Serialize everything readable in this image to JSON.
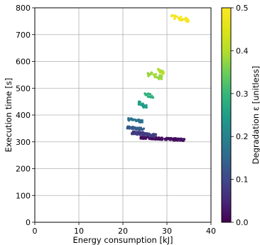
{
  "chart_data": {
    "type": "scatter",
    "xlabel": "Energy consumption [kJ]",
    "ylabel": "Execution time [s]",
    "xlim": [
      0,
      40
    ],
    "ylim": [
      0,
      800
    ],
    "xticks": [
      0,
      10,
      20,
      30,
      40
    ],
    "yticks": [
      0,
      100,
      200,
      300,
      400,
      500,
      600,
      700,
      800
    ],
    "grid": true,
    "colormap": "viridis",
    "colorbar": {
      "label": "Degradation ε [unitless]",
      "range": [
        0,
        0.5
      ],
      "ticks": [
        "0.0",
        "0.1",
        "0.2",
        "0.3",
        "0.4",
        "0.5"
      ]
    },
    "clusters": [
      {
        "degradation": 0.02,
        "x_range": [
          24.0,
          34.0
        ],
        "y_range": [
          302,
          316
        ],
        "count": 170
      },
      {
        "degradation": 0.08,
        "x_range": [
          22.0,
          27.5
        ],
        "y_range": [
          316,
          335
        ],
        "count": 80
      },
      {
        "degradation": 0.13,
        "x_range": [
          21.0,
          25.0
        ],
        "y_range": [
          340,
          355
        ],
        "count": 40
      },
      {
        "degradation": 0.17,
        "x_range": [
          21.0,
          24.5
        ],
        "y_range": [
          370,
          385
        ],
        "count": 30
      },
      {
        "degradation": 0.25,
        "x_range": [
          23.5,
          25.5
        ],
        "y_range": [
          420,
          445
        ],
        "count": 22
      },
      {
        "degradation": 0.29,
        "x_range": [
          25.0,
          27.0
        ],
        "y_range": [
          455,
          480
        ],
        "count": 16
      },
      {
        "degradation": 0.38,
        "x_range": [
          25.5,
          29.0
        ],
        "y_range": [
          525,
          555
        ],
        "count": 28
      },
      {
        "degradation": 0.4,
        "x_range": [
          28.0,
          29.5
        ],
        "y_range": [
          545,
          570
        ],
        "count": 12
      },
      {
        "degradation": 0.49,
        "x_range": [
          31.0,
          35.0
        ],
        "y_range": [
          745,
          768
        ],
        "count": 30
      }
    ]
  }
}
